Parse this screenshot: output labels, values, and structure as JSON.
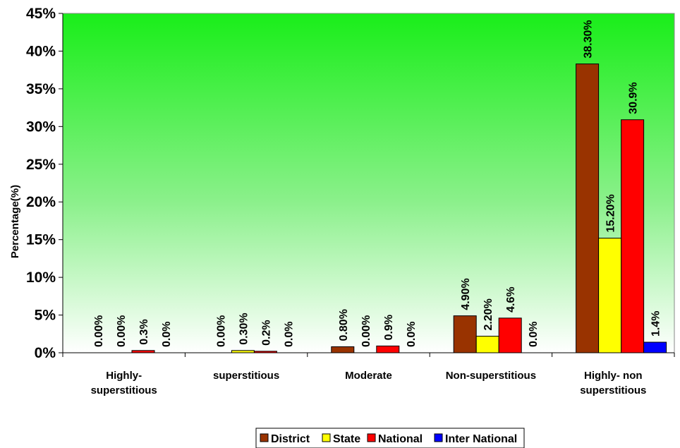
{
  "chart_data": {
    "type": "bar",
    "title": "",
    "xlabel": "",
    "ylabel": "Percentage(%)",
    "ylim": [
      0,
      45
    ],
    "yticks": [
      "0%",
      "5%",
      "10%",
      "15%",
      "20%",
      "25%",
      "30%",
      "35%",
      "40%",
      "45%"
    ],
    "grid": false,
    "legend_position": "bottom",
    "background": "green-gradient",
    "categories": [
      [
        "Highly-",
        "superstitious"
      ],
      [
        "superstitious"
      ],
      [
        "Moderate"
      ],
      [
        "Non-superstitious"
      ],
      [
        "Highly- non",
        "superstitious"
      ]
    ],
    "series": [
      {
        "name": "District",
        "color": "#993300",
        "values": [
          0.0,
          0.0,
          0.8,
          4.9,
          38.3
        ],
        "labels": [
          "0.00%",
          "0.00%",
          "0.80%",
          "4.90%",
          "38.30%"
        ]
      },
      {
        "name": "State",
        "color": "#ffff00",
        "values": [
          0.0,
          0.3,
          0.0,
          2.2,
          15.2
        ],
        "labels": [
          "0.00%",
          "0.30%",
          "0.00%",
          "2.20%",
          "15.20%"
        ]
      },
      {
        "name": "National",
        "color": "#ff0000",
        "values": [
          0.3,
          0.2,
          0.9,
          4.6,
          30.9
        ],
        "labels": [
          "0.3%",
          "0.2%",
          "0.9%",
          "4.6%",
          "30.9%"
        ]
      },
      {
        "name": "Inter National",
        "color": "#0000ff",
        "values": [
          0.0,
          0.0,
          0.0,
          0.0,
          1.4
        ],
        "labels": [
          "0.0%",
          "0.0%",
          "0.0%",
          "0.0%",
          "1.4%"
        ]
      }
    ]
  }
}
